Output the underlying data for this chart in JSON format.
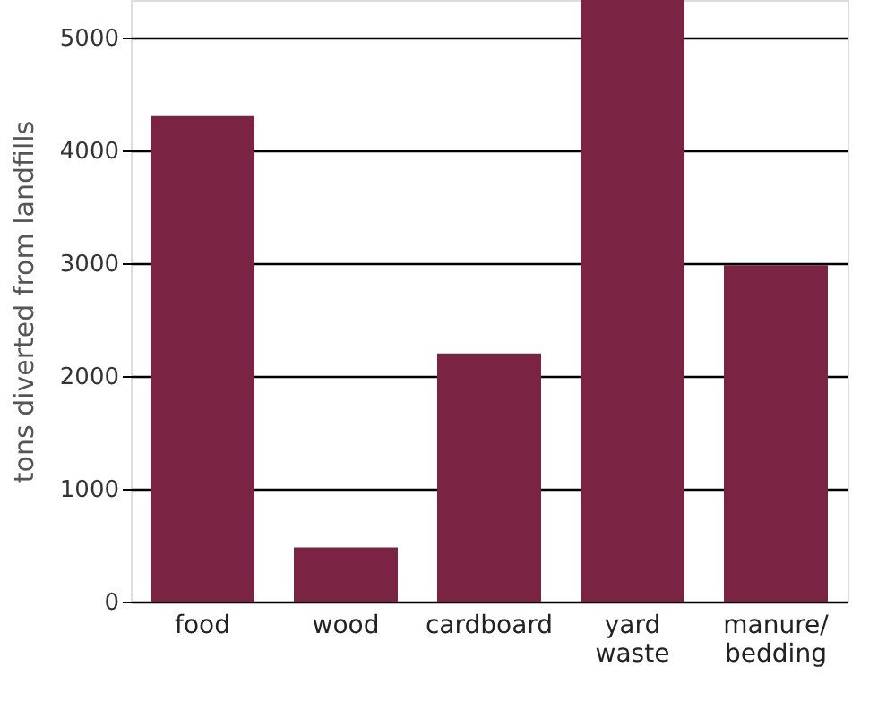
{
  "chart_data": {
    "type": "bar",
    "ylabel": "tons diverted from landfills",
    "categories": [
      "food",
      "wood",
      "cardboard",
      "yard waste",
      "manure/bedding"
    ],
    "values": [
      4300,
      480,
      2200,
      5330,
      2980
    ],
    "color": "#7b2342",
    "ylim": [
      0,
      5330
    ],
    "yticks": [
      0,
      1000,
      2000,
      3000,
      4000,
      5000
    ],
    "grid": "y"
  }
}
